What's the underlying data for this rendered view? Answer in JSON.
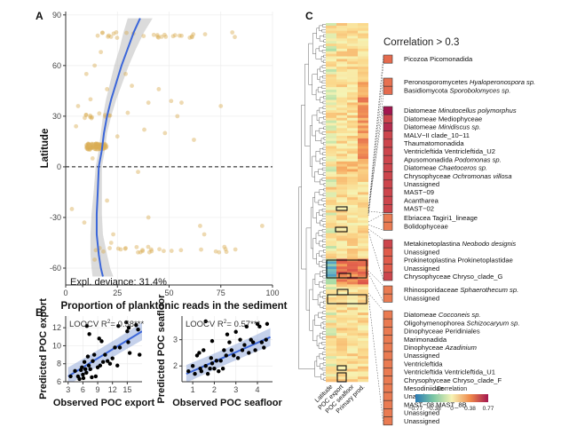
{
  "colors": {
    "point_A": "#d9ad55",
    "fit_line": "#3b66d9",
    "ci_band": "#bdbdbd",
    "point_B": "#000000",
    "heat_low": "#2a7ab4",
    "heat_mid": "#f6f3b4",
    "heat_high": "#a3164f",
    "axis": "#333333",
    "text": "#111111"
  },
  "panel_labels": {
    "a": "A",
    "b": "B",
    "c": "C"
  },
  "chart_data": [
    {
      "id": "A",
      "type": "scatter",
      "title": "",
      "xlabel": "Proportion of planktonic reads in the sediment",
      "ylabel": "Latitude",
      "xlim": [
        0,
        100
      ],
      "ylim": [
        -70,
        92
      ],
      "xticks": [
        0,
        25,
        50,
        75,
        100
      ],
      "yticks": [
        -60,
        -30,
        0,
        30,
        60,
        90
      ],
      "reference_line_y": 0,
      "annotation": "Expl. deviance: 31.4%",
      "fit": {
        "type": "gam",
        "points": [
          [
            18,
            -65
          ],
          [
            17,
            -60
          ],
          [
            16,
            -52
          ],
          [
            15,
            -40
          ],
          [
            15,
            -28
          ],
          [
            15.5,
            -15
          ],
          [
            16,
            0
          ],
          [
            17.5,
            10
          ],
          [
            18.5,
            20
          ],
          [
            20,
            30
          ],
          [
            22,
            40
          ],
          [
            24.5,
            50
          ],
          [
            27,
            60
          ],
          [
            30,
            70
          ],
          [
            33,
            80
          ],
          [
            36,
            88
          ]
        ],
        "ci_half_width": [
          5,
          4.5,
          4,
          3,
          2.5,
          2,
          1.5,
          1.5,
          1.5,
          2,
          2.5,
          3,
          3.5,
          4,
          5,
          6
        ]
      },
      "bands": [
        {
          "lat": 78,
          "xrange": [
            12,
            85
          ],
          "n": 30
        },
        {
          "lat": 12,
          "xrange": [
            10,
            20
          ],
          "n": 70
        },
        {
          "lat": -49,
          "xrange": [
            12,
            85
          ],
          "n": 28
        },
        {
          "lat": 30,
          "xrange": [
            8,
            22
          ],
          "n": 12
        }
      ],
      "extra_points": [
        [
          14,
          -55
        ],
        [
          22,
          -45
        ],
        [
          9,
          -33
        ],
        [
          20,
          -20
        ],
        [
          35,
          -3
        ],
        [
          13,
          5
        ],
        [
          25,
          18
        ],
        [
          48,
          20
        ],
        [
          40,
          38
        ],
        [
          56,
          38
        ],
        [
          75,
          36
        ],
        [
          38,
          22
        ],
        [
          5,
          24
        ],
        [
          6,
          36
        ],
        [
          20,
          46
        ],
        [
          45,
          46
        ],
        [
          10,
          55
        ],
        [
          29,
          55
        ],
        [
          32,
          48
        ],
        [
          54,
          30
        ],
        [
          3,
          -25
        ],
        [
          67,
          -40
        ],
        [
          23,
          -40
        ],
        [
          40,
          -30
        ],
        [
          65,
          -35
        ],
        [
          95,
          -35
        ],
        [
          51,
          39
        ],
        [
          14,
          60
        ],
        [
          17,
          68
        ],
        [
          30,
          32
        ],
        [
          12,
          40
        ],
        [
          62,
          16
        ]
      ]
    },
    {
      "id": "B1",
      "type": "scatter",
      "xlabel": "Observed POC export",
      "ylabel": "Predicted POC export",
      "annotation_prefix": "LOOCV R",
      "annotation_value": "= 0.58***",
      "xlim": [
        2.5,
        18
      ],
      "ylim": [
        6,
        13.3
      ],
      "xticks": [
        3,
        6,
        9,
        12,
        15
      ],
      "yticks": [
        6,
        8,
        10,
        12
      ],
      "fit": {
        "x": [
          3,
          18
        ],
        "y": [
          6.6,
          11.6
        ]
      },
      "points": [
        [
          3.5,
          6.6
        ],
        [
          4.4,
          7.2
        ],
        [
          5,
          6.6
        ],
        [
          5.3,
          6.3
        ],
        [
          5.6,
          7.3
        ],
        [
          5.8,
          7.6
        ],
        [
          6,
          6.8
        ],
        [
          6.1,
          6.4
        ],
        [
          6.3,
          8.2
        ],
        [
          6.5,
          7.4
        ],
        [
          6.7,
          7.0
        ],
        [
          7.0,
          8.8
        ],
        [
          7.2,
          7.8
        ],
        [
          7.5,
          7.4
        ],
        [
          7.8,
          6.5
        ],
        [
          8.0,
          8.3
        ],
        [
          8.3,
          9.0
        ],
        [
          8.6,
          6.6
        ],
        [
          9.0,
          7.6
        ],
        [
          9.3,
          10.8
        ],
        [
          9.5,
          7.8
        ],
        [
          9.8,
          10.5
        ],
        [
          10.1,
          8.2
        ],
        [
          10.5,
          9.0
        ],
        [
          11.0,
          8.3
        ],
        [
          11.5,
          8.0
        ],
        [
          12.0,
          8.6
        ],
        [
          12.5,
          9.8
        ],
        [
          13.0,
          7.8
        ],
        [
          13.2,
          12.2
        ],
        [
          13.5,
          9.8
        ],
        [
          14.8,
          12.6
        ],
        [
          15.0,
          11.6
        ],
        [
          15.2,
          10.4
        ],
        [
          15.5,
          9.2
        ],
        [
          16.8,
          12.3
        ],
        [
          17.2,
          11.8
        ],
        [
          17.5,
          9.0
        ],
        [
          15.3,
          12.0
        ],
        [
          6.8,
          12.2
        ],
        [
          7.3,
          11.3
        ]
      ]
    },
    {
      "id": "B2",
      "type": "scatter",
      "xlabel": "Observed POC seafloor",
      "ylabel": "Predicted POC seafloor",
      "annotation_prefix": "LOOCV R",
      "annotation_value": "= 0.57***",
      "xlim": [
        0.5,
        4.7
      ],
      "ylim": [
        1.4,
        3.9
      ],
      "xticks": [
        1,
        2,
        3,
        4
      ],
      "yticks": [
        2,
        3
      ],
      "fit": {
        "x": [
          0.7,
          4.6
        ],
        "y": [
          1.7,
          3.1
        ]
      },
      "points": [
        [
          0.8,
          1.8
        ],
        [
          1.0,
          2.0
        ],
        [
          1.1,
          1.7
        ],
        [
          1.2,
          2.4
        ],
        [
          1.3,
          2.5
        ],
        [
          1.35,
          1.9
        ],
        [
          1.4,
          1.8
        ],
        [
          1.5,
          2.6
        ],
        [
          1.6,
          2.0
        ],
        [
          1.7,
          1.7
        ],
        [
          1.8,
          1.9
        ],
        [
          1.85,
          2.3
        ],
        [
          1.9,
          2.1
        ],
        [
          2.0,
          1.9
        ],
        [
          2.1,
          2.2
        ],
        [
          2.2,
          1.8
        ],
        [
          2.3,
          2.2
        ],
        [
          2.4,
          1.9
        ],
        [
          2.45,
          2.6
        ],
        [
          2.55,
          2.4
        ],
        [
          2.6,
          3.2
        ],
        [
          2.8,
          2.6
        ],
        [
          2.9,
          2.4
        ],
        [
          3.0,
          3.3
        ],
        [
          3.1,
          2.3
        ],
        [
          3.2,
          3.0
        ],
        [
          3.3,
          2.6
        ],
        [
          3.4,
          2.8
        ],
        [
          3.5,
          3.5
        ],
        [
          3.6,
          2.5
        ],
        [
          3.7,
          3.0
        ],
        [
          3.8,
          2.9
        ],
        [
          3.9,
          2.6
        ],
        [
          4.0,
          3.6
        ],
        [
          4.1,
          3.5
        ],
        [
          4.2,
          2.9
        ],
        [
          4.3,
          2.7
        ],
        [
          4.4,
          3.0
        ],
        [
          4.45,
          3.6
        ],
        [
          1.6,
          3.7
        ],
        [
          1.9,
          2.95
        ],
        [
          2.7,
          2.9
        ]
      ]
    },
    {
      "id": "C",
      "type": "heatmap",
      "title": "Correlation > 0.3",
      "columns": [
        "Latitude",
        "POC export",
        "POC seafloor",
        "Primary prod."
      ],
      "legend_title": "Correlation",
      "legend_range": [
        -0.77,
        0.77
      ],
      "legend_ticks": [
        "−0.77",
        "−0.38",
        "0",
        "0.38",
        "0.77"
      ],
      "groups": [
        {
          "taxa": [
            {
              "label": "Picozoa Picomonadida",
              "value": 0.5
            }
          ]
        },
        {
          "taxa": [
            {
              "label_pre": "Peronosporomycetes ",
              "label_it": "Hyaloperonospora sp.",
              "value": 0.48
            },
            {
              "label_pre": "Basidiomycota ",
              "label_it": "Sporobolomyces sp.",
              "value": 0.5
            }
          ]
        },
        {
          "taxa": [
            {
              "label_pre": "Diatomeae ",
              "label_it": "Minutocellus polymorphus",
              "value": 0.77
            },
            {
              "label": "Diatomeae Mediophyceae",
              "value": 0.62
            },
            {
              "label_pre": "Diatomeae ",
              "label_it": "Minidiscus sp.",
              "value": 0.7
            },
            {
              "label": "MALV−II clade_10−11",
              "value": 0.62
            },
            {
              "label": "Thaumatomonadida",
              "value": 0.62
            },
            {
              "label": "Ventricleftida Ventricleftida_U2",
              "value": 0.62
            },
            {
              "label_pre": "Apusomonadida ",
              "label_it": "Podomonas sp.",
              "value": 0.62
            },
            {
              "label_pre": "Diatomeae ",
              "label_it": "Chaetoceros sp.",
              "value": 0.62
            },
            {
              "label_pre": "Chrysophyceae ",
              "label_it": "Ochromonas villosa",
              "value": 0.62
            },
            {
              "label": "Unassigned",
              "value": 0.62
            },
            {
              "label": "MAST−09",
              "value": 0.62
            },
            {
              "label": "Acantharea",
              "value": 0.62
            },
            {
              "label": "MAST−02",
              "value": 0.62
            }
          ]
        },
        {
          "taxa": [
            {
              "label": "Ebriacea Tagiri1_lineage",
              "value": 0.45
            },
            {
              "label": "Bolidophyceae",
              "value": 0.45
            }
          ]
        },
        {
          "taxa": [
            {
              "label_pre": "Metakinetoplastina ",
              "label_it": "Neobodo designis",
              "value": 0.62
            },
            {
              "label": "Unassigned",
              "value": 0.55
            },
            {
              "label": "Prokinetoplastina Prokinetoplastidae",
              "value": 0.55
            },
            {
              "label": "Unassigned",
              "value": 0.55
            },
            {
              "label": "Chrysophyceae Chryso_clade_G",
              "value": 0.62
            }
          ]
        },
        {
          "taxa": [
            {
              "label_pre": "Rhinosporidaceae ",
              "label_it": "Sphaerothecum sp.",
              "value": 0.45
            },
            {
              "label": "Unassigned",
              "value": 0.45
            }
          ]
        },
        {
          "taxa": [
            {
              "label_pre": "Diatomeae ",
              "label_it": "Cocconeis sp.",
              "value": 0.45
            },
            {
              "label_pre": "Oligohymenophorea ",
              "label_it": "Schizocaryum sp.",
              "value": 0.45
            },
            {
              "label": "Dinophyceae Peridiniales",
              "value": 0.45
            },
            {
              "label": "Marimonadida",
              "value": 0.45
            },
            {
              "label_pre": "Dinophyceae ",
              "label_it": "Azadinium",
              "value": 0.45
            },
            {
              "label": "Unassigned",
              "value": 0.45
            },
            {
              "label": "Ventricleftida",
              "value": 0.45
            },
            {
              "label": "Ventricleftida Ventricleftida_U1",
              "value": 0.45
            },
            {
              "label": "Chrysophyceae Chryso_clade_F",
              "value": 0.45
            },
            {
              "label": "Mesodiniidae",
              "value": 0.45
            },
            {
              "label": "Unassigned",
              "value": 0.45
            },
            {
              "label": "MAST−08 MAST_8B",
              "value": 0.45
            },
            {
              "label": "Unassigned",
              "value": 0.45
            },
            {
              "label": "Unassigned",
              "value": 0.45
            }
          ]
        }
      ]
    }
  ]
}
